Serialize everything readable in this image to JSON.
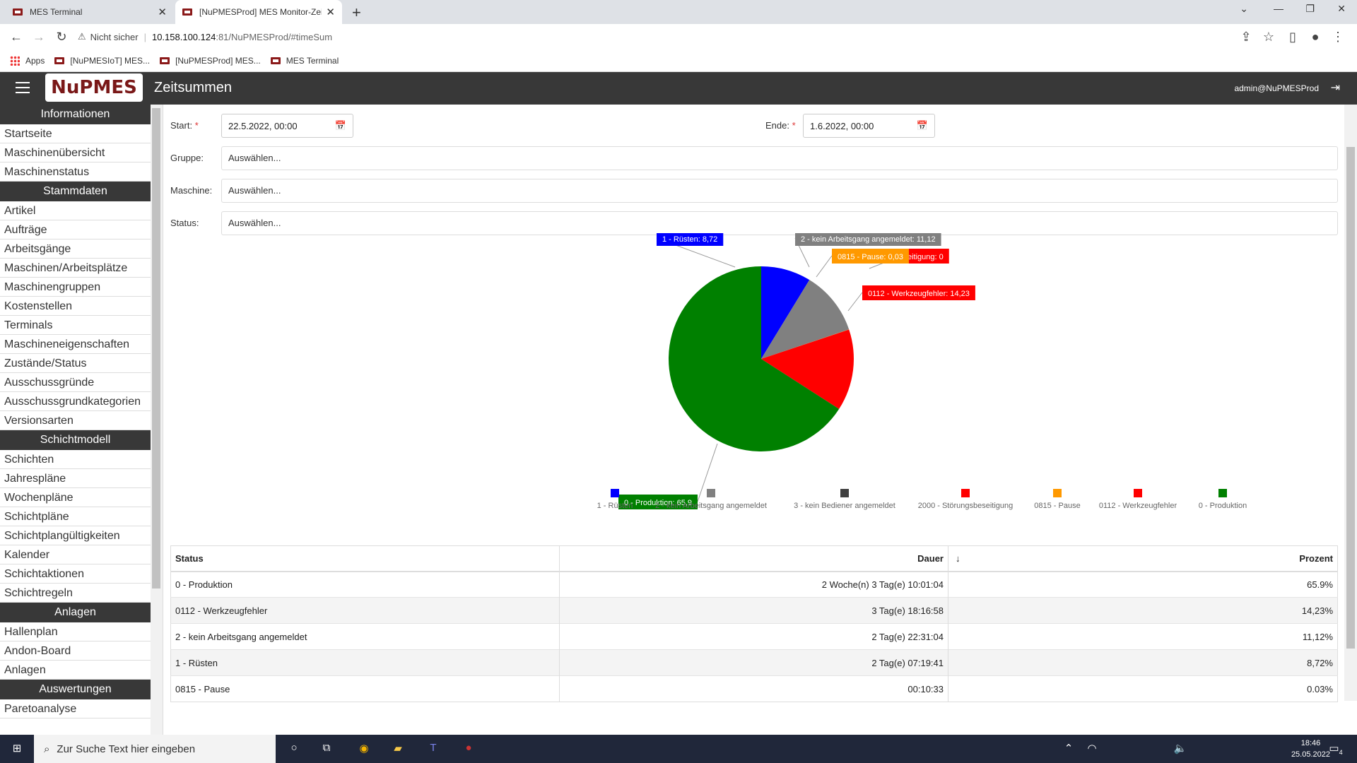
{
  "browser": {
    "tabs": [
      {
        "title": "MES Terminal"
      },
      {
        "title": "[NuPMESProd] MES Monitor-Zei"
      }
    ],
    "security_label": "Nicht sicher",
    "url_host": "10.158.100.124",
    "url_rest": ":81/NuPMESProd/#timeSum",
    "bookmarks": [
      "Apps",
      "[NuPMESIoT] MES...",
      "[NuPMESProd] MES...",
      "MES Terminal"
    ]
  },
  "header": {
    "logo": "NuPMES",
    "title": "Zeitsummen",
    "user": "admin@NuPMESProd"
  },
  "sidebar": {
    "sections": [
      {
        "title": "Informationen",
        "items": [
          "Startseite",
          "Maschinenübersicht",
          "Maschinenstatus"
        ]
      },
      {
        "title": "Stammdaten",
        "items": [
          "Artikel",
          "Aufträge",
          "Arbeitsgänge",
          "Maschinen/Arbeitsplätze",
          "Maschinengruppen",
          "Kostenstellen",
          "Terminals",
          "Maschineneigenschaften",
          "Zustände/Status",
          "Ausschussgründe",
          "Ausschussgrundkategorien",
          "Versionsarten"
        ]
      },
      {
        "title": "Schichtmodell",
        "items": [
          "Schichten",
          "Jahrespläne",
          "Wochenpläne",
          "Schichtpläne",
          "Schichtplangültigkeiten",
          "Kalender",
          "Schichtaktionen",
          "Schichtregeln"
        ]
      },
      {
        "title": "Anlagen",
        "items": [
          "Hallenplan",
          "Andon-Board",
          "Anlagen"
        ]
      },
      {
        "title": "Auswertungen",
        "items": [
          "Paretoanalyse"
        ]
      }
    ]
  },
  "filters": {
    "start_label": "Start:",
    "start_value": "22.5.2022, 00:00",
    "end_label": "Ende:",
    "end_value": "1.6.2022, 00:00",
    "required_mark": "*",
    "group_label": "Gruppe:",
    "machine_label": "Maschine:",
    "status_label": "Status:",
    "placeholder": "Auswählen..."
  },
  "chart_data": {
    "type": "pie",
    "series": [
      {
        "name": "1 - Rüsten",
        "value": 8.72,
        "color": "#0000ff"
      },
      {
        "name": "2 - kein Arbeitsgang angemeldet",
        "value": 11.12,
        "color": "#808080"
      },
      {
        "name": "3 - kein Bediener angemeldet",
        "value": 0,
        "color": "#404040"
      },
      {
        "name": "2000 - Störungsbeseitigung",
        "value": 0,
        "color": "#ff0000"
      },
      {
        "name": "0815 - Pause",
        "value": 0.03,
        "color": "#ff9900"
      },
      {
        "name": "0112 - Werkzeugfehler",
        "value": 14.23,
        "color": "#ff0000"
      },
      {
        "name": "0 - Produktion",
        "value": 65.9,
        "color": "#008000"
      }
    ],
    "data_labels": [
      {
        "text": "1 - Rüsten: 8,72",
        "color": "#0000ff"
      },
      {
        "text": "2 - kein Arbeitsgang angemeldet: 11,12",
        "color": "#808080"
      },
      {
        "text": "eitigung: 0",
        "color": "#ff0000"
      },
      {
        "text": "0815 - Pause: 0,03",
        "color": "#ff9900"
      },
      {
        "text": "0112 - Werkzeugfehler: 14,23",
        "color": "#ff0000"
      },
      {
        "text": "0 - Produktion: 65,9",
        "color": "#008000"
      }
    ],
    "legend_position": "bottom"
  },
  "table": {
    "headers": [
      "Status",
      "Dauer",
      "Prozent"
    ],
    "sort_indicator": "↓",
    "rows": [
      [
        "0 - Produktion",
        "2 Woche(n) 3 Tag(e) 10:01:04",
        "65.9%"
      ],
      [
        "0112 - Werkzeugfehler",
        "3 Tag(e) 18:16:58",
        "14,23%"
      ],
      [
        "2 - kein Arbeitsgang angemeldet",
        "2 Tag(e) 22:31:04",
        "11,12%"
      ],
      [
        "1 - Rüsten",
        "2 Tag(e) 07:19:41",
        "8,72%"
      ],
      [
        "0815 - Pause",
        "00:10:33",
        "0.03%"
      ]
    ]
  },
  "taskbar": {
    "search_placeholder": "Zur Suche Text hier eingeben",
    "time": "18:46",
    "date": "25.05.2022",
    "notification_count": "4"
  }
}
